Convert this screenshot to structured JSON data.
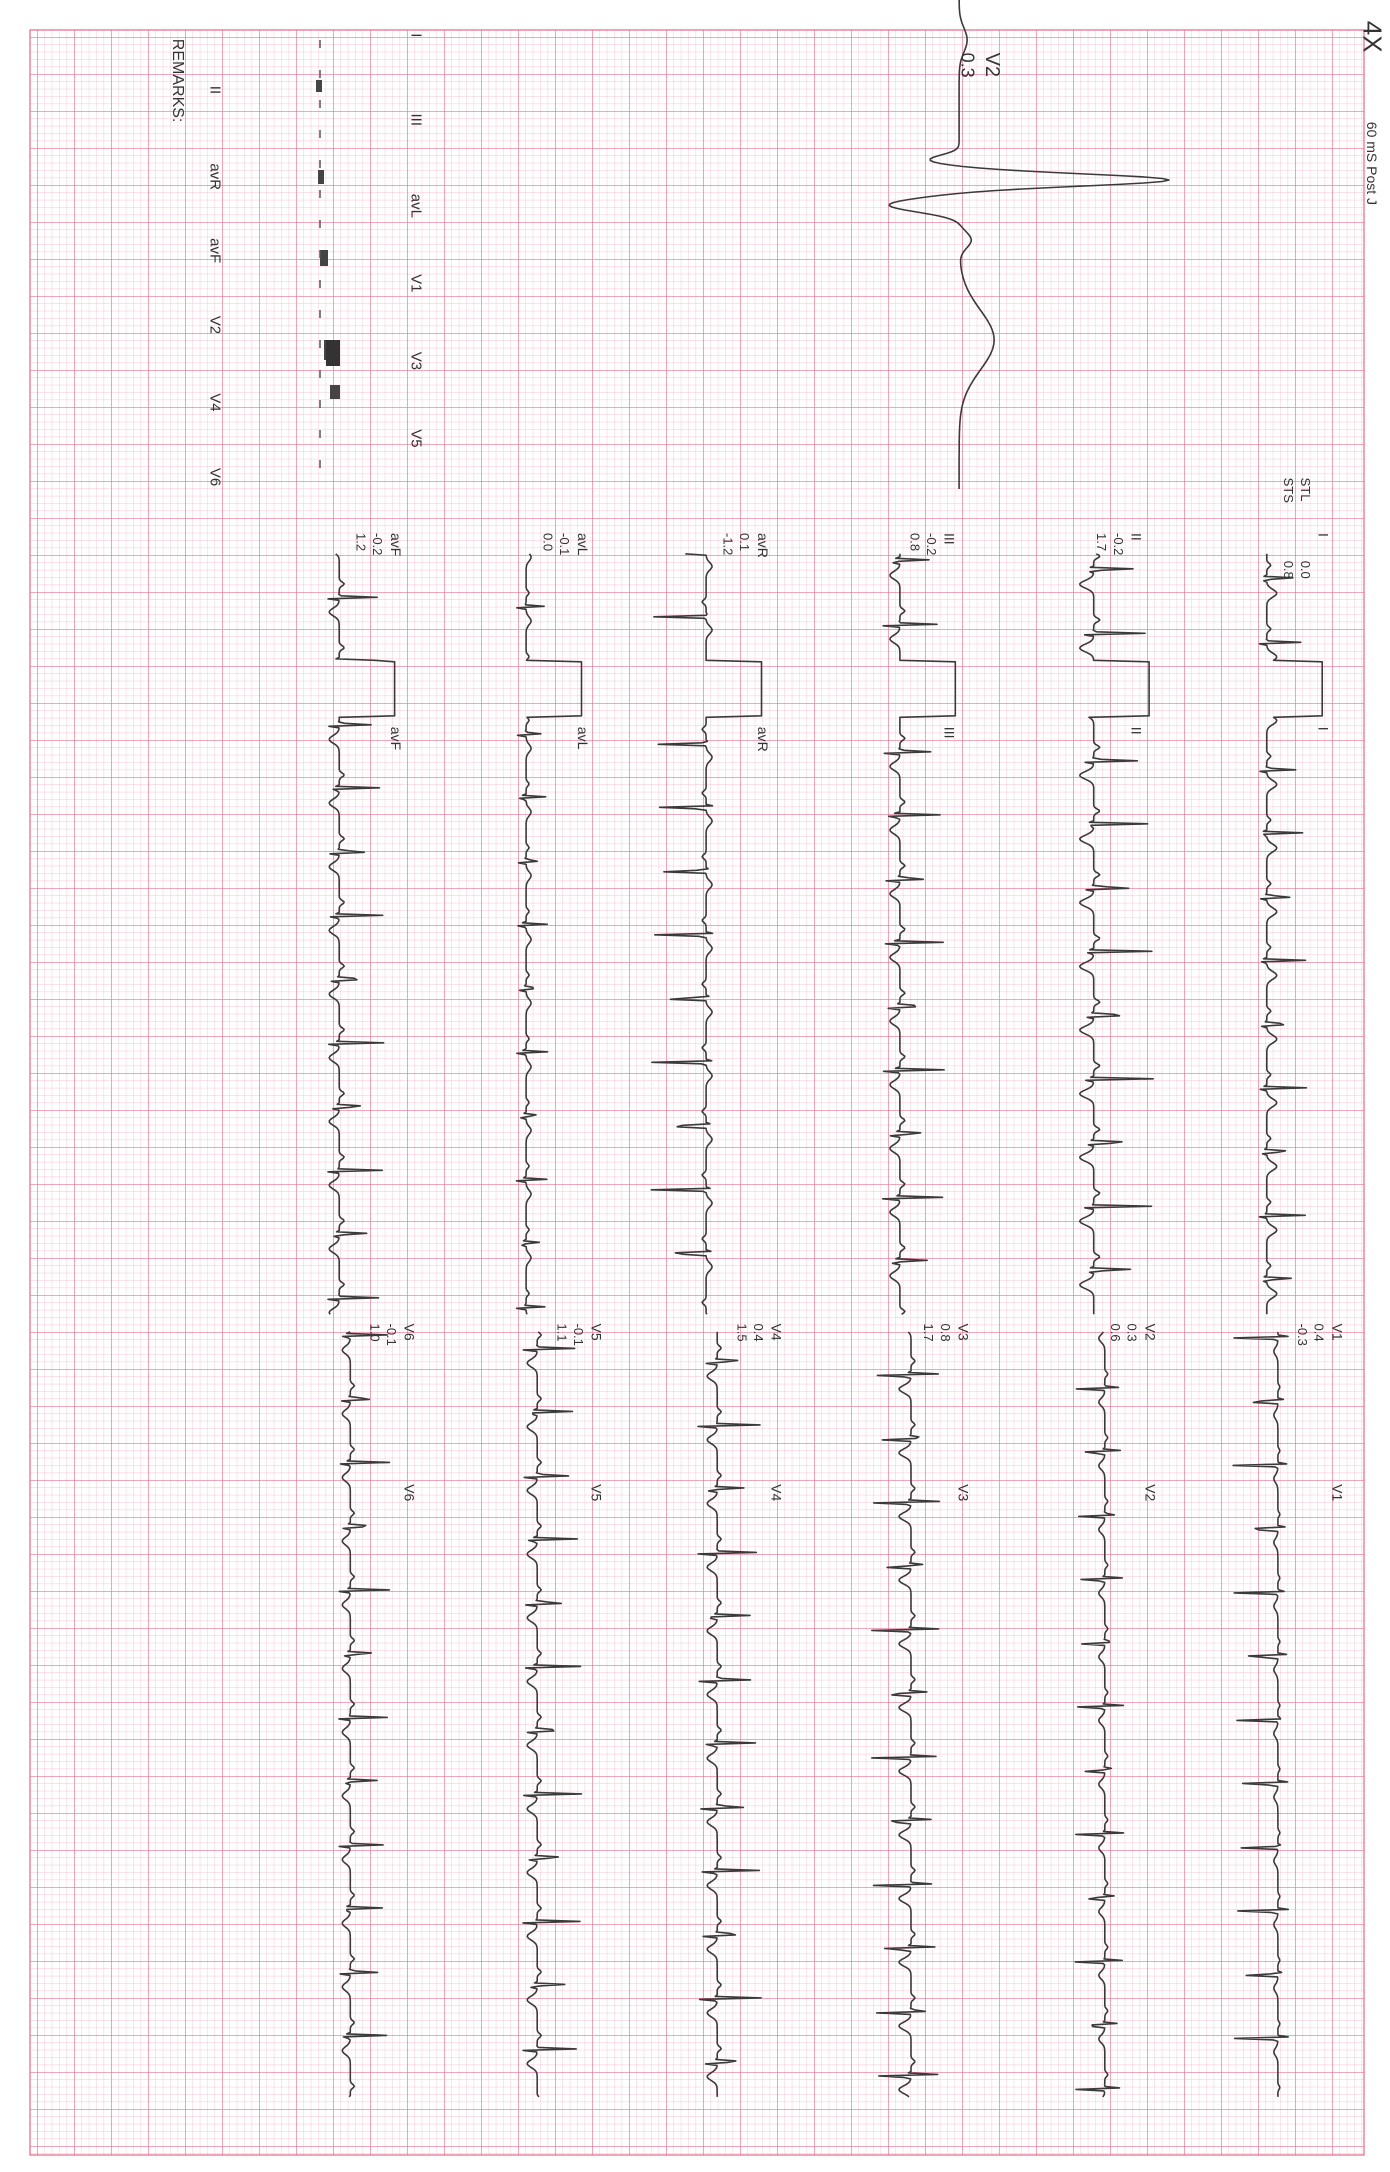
{
  "header": {
    "magnification": "4X",
    "measurement": "60 mS Post J"
  },
  "summary_labels": {
    "stl": "STL",
    "sts": "STS"
  },
  "leads": [
    {
      "name": "I",
      "stl": "0.0",
      "sts": "0.8"
    },
    {
      "name": "II",
      "stl": "-0.2",
      "sts": "1.7"
    },
    {
      "name": "III",
      "stl": "-0.2",
      "sts": "0.8"
    },
    {
      "name": "avR",
      "stl": "0.1",
      "sts": "-1.2"
    },
    {
      "name": "avL",
      "stl": "-0.1",
      "sts": "0.0"
    },
    {
      "name": "avF",
      "stl": "-0.2",
      "sts": "1.2"
    },
    {
      "name": "V1",
      "stl": "0.4",
      "sts": "-0.3"
    },
    {
      "name": "V2",
      "stl": "0.3",
      "sts": "0.6"
    },
    {
      "name": "V3",
      "stl": "0.8",
      "sts": "1.7"
    },
    {
      "name": "V4",
      "stl": "0.4",
      "sts": "1.5"
    },
    {
      "name": "V5",
      "stl": "-0.1",
      "sts": "1.1"
    },
    {
      "name": "V6",
      "stl": "-0.1",
      "sts": "1.0"
    }
  ],
  "detail": {
    "lead": "V2",
    "value": "0.3"
  },
  "lead_list": {
    "column_1": [
      "I",
      "III",
      "avL",
      "V1",
      "V3",
      "V5"
    ],
    "column_2": [
      "II",
      "avR",
      "avF",
      "V2",
      "V4",
      "V6"
    ]
  },
  "remarks": "REMARKS:"
}
